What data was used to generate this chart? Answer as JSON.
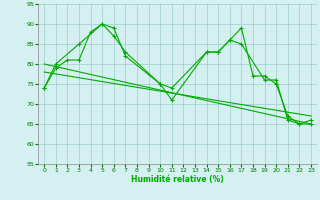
{
  "xlabel": "Humidité relative (%)",
  "xlim": [
    -0.5,
    23.5
  ],
  "ylim": [
    55,
    95
  ],
  "yticks": [
    55,
    60,
    65,
    70,
    75,
    80,
    85,
    90,
    95
  ],
  "xticks": [
    0,
    1,
    2,
    3,
    4,
    5,
    6,
    7,
    8,
    9,
    10,
    11,
    12,
    13,
    14,
    15,
    16,
    17,
    18,
    19,
    20,
    21,
    22,
    23
  ],
  "background_color": "#d4f0f0",
  "grid_color": "#a0cccc",
  "line_color": "#00aa00",
  "line1_x": [
    0,
    1,
    2,
    3,
    4,
    5,
    6,
    7,
    10,
    11,
    14,
    15,
    16,
    17,
    18,
    19,
    20,
    21,
    22,
    23
  ],
  "line1_y": [
    74,
    79,
    81,
    81,
    88,
    90,
    89,
    82,
    75,
    71,
    83,
    83,
    86,
    89,
    77,
    77,
    75,
    67,
    65,
    66
  ],
  "line2_x": [
    0,
    1,
    3,
    5,
    6,
    7,
    10,
    11,
    14,
    15,
    16,
    17,
    19,
    20,
    21,
    22,
    23
  ],
  "line2_y": [
    74,
    80,
    85,
    90,
    87,
    83,
    75,
    74,
    83,
    83,
    86,
    85,
    76,
    76,
    66,
    65,
    65
  ],
  "line3_x": [
    0,
    23
  ],
  "line3_y": [
    78,
    67
  ],
  "line4_x": [
    0,
    23
  ],
  "line4_y": [
    80,
    65
  ]
}
